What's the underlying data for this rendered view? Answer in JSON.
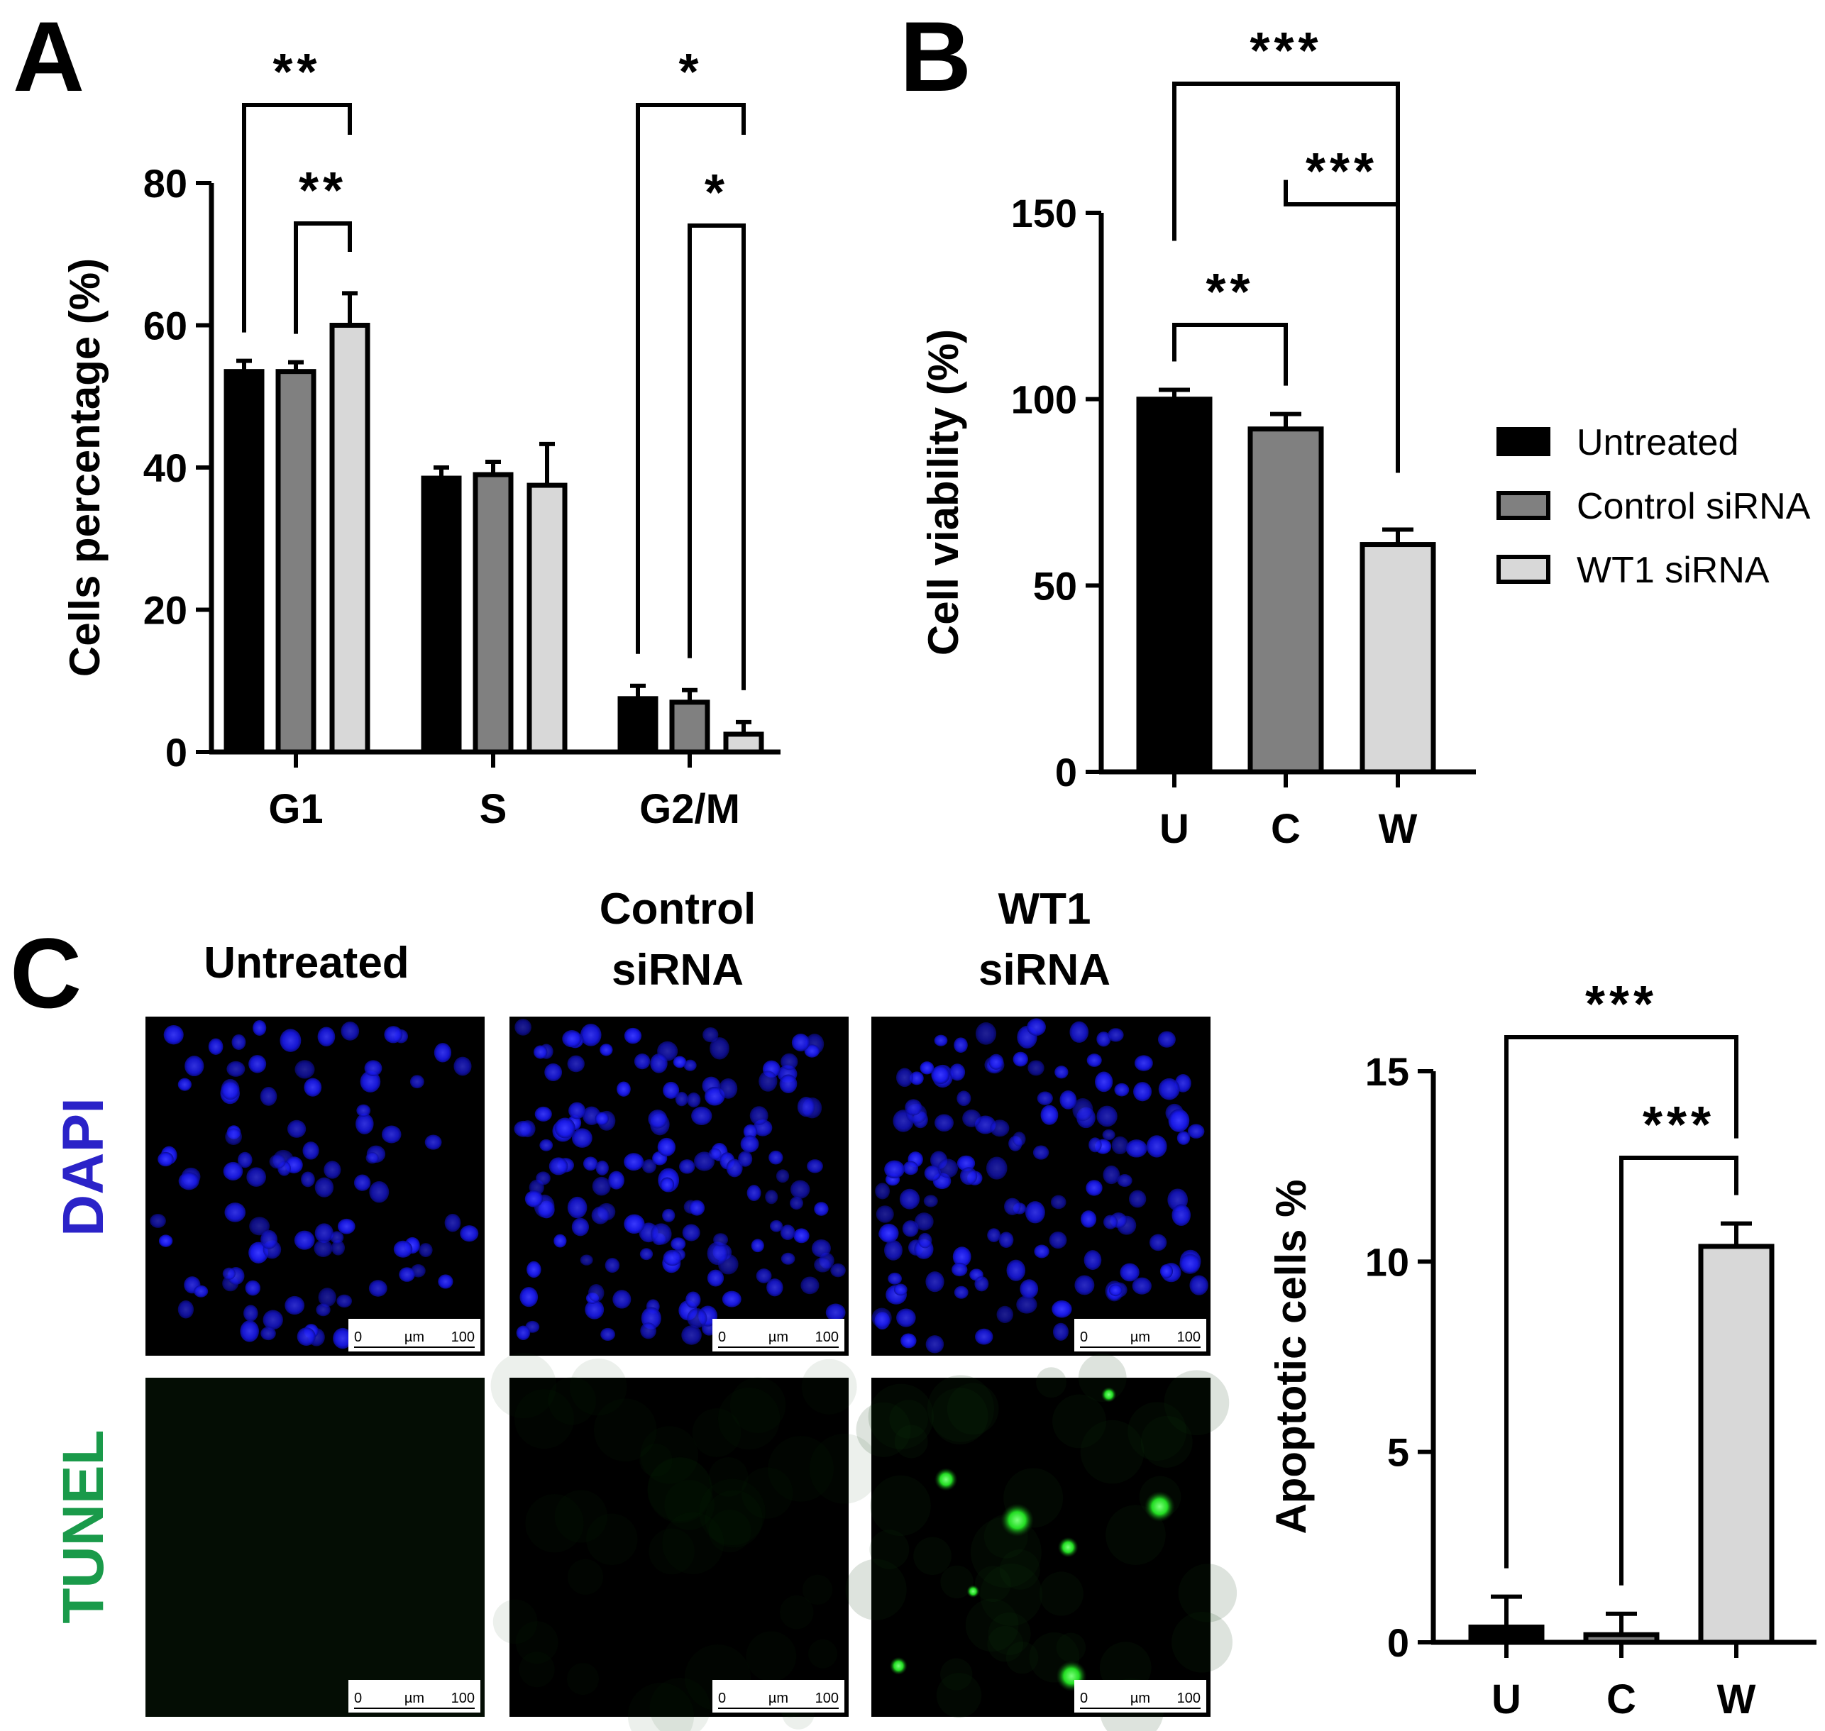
{
  "colors": {
    "untreated": "#000000",
    "control": "#808080",
    "wt1": "#d8d8d8",
    "dapi": "#2b23c8",
    "tunel": "#1a9a4a",
    "nuclei": "#1d1dff"
  },
  "legend": {
    "items": [
      {
        "label": "Untreated",
        "color": "#000000"
      },
      {
        "label": "Control siRNA",
        "color": "#808080"
      },
      {
        "label": "WT1 siRNA",
        "color": "#d8d8d8"
      }
    ]
  },
  "chart_data": [
    {
      "panel": "A",
      "type": "bar",
      "ylabel": "Cells percentage (%)",
      "xlabel": "",
      "ylim": [
        0,
        80
      ],
      "yticks": [
        "0",
        "20",
        "40",
        "60",
        "80"
      ],
      "categories": [
        "G1",
        "S",
        "G2/M"
      ],
      "series": [
        {
          "name": "Untreated",
          "values": [
            53.5,
            38.5,
            7.5
          ],
          "errors": [
            1.5,
            1.5,
            1.8
          ]
        },
        {
          "name": "Control siRNA",
          "values": [
            53.5,
            39,
            7
          ],
          "errors": [
            1.3,
            1.8,
            1.7
          ]
        },
        {
          "name": "WT1 siRNA",
          "values": [
            60,
            37.5,
            2.5
          ],
          "errors": [
            4.5,
            5.8,
            1.7
          ]
        }
      ],
      "significance": [
        {
          "label": "**",
          "group": 0,
          "from": 0,
          "to": 2
        },
        {
          "label": "**",
          "group": 0,
          "from": 1,
          "to": 2
        },
        {
          "label": "*",
          "group": 2,
          "from": 0,
          "to": 2
        },
        {
          "label": "*",
          "group": 2,
          "from": 1,
          "to": 2
        }
      ]
    },
    {
      "panel": "B",
      "type": "bar",
      "ylabel": "Cell viability (%)",
      "xlabel": "",
      "ylim": [
        0,
        150
      ],
      "yticks": [
        "0",
        "50",
        "100",
        "150"
      ],
      "categories": [
        "U",
        "C",
        "W"
      ],
      "values": [
        100,
        92,
        61
      ],
      "errors": [
        2.5,
        4,
        4
      ],
      "significance": [
        {
          "label": "***",
          "from": 0,
          "to": 2
        },
        {
          "label": "***",
          "from": 1,
          "to": 2
        },
        {
          "label": "**",
          "from": 0,
          "to": 1
        }
      ]
    },
    {
      "panel": "C",
      "type": "bar",
      "ylabel": "Apoptotic cells  %",
      "xlabel": "",
      "ylim": [
        0,
        15
      ],
      "yticks": [
        "0",
        "5",
        "10",
        "15"
      ],
      "categories": [
        "U",
        "C",
        "W"
      ],
      "values": [
        0.4,
        0.2,
        10.4
      ],
      "errors": [
        0.8,
        0.55,
        0.6
      ],
      "significance": [
        {
          "label": "***",
          "from": 0,
          "to": 2
        },
        {
          "label": "***",
          "from": 1,
          "to": 2
        }
      ]
    }
  ],
  "panels": {
    "a_letter": "A",
    "b_letter": "B",
    "c_letter": "C"
  },
  "micrographs": {
    "columns": [
      "Untreated",
      "Control",
      "siRNA",
      "WT1",
      "siRNA"
    ],
    "col_untreated": "Untreated",
    "col_control_l1": "Control",
    "col_control_l2": "siRNA",
    "col_wt1_l1": "WT1",
    "col_wt1_l2": "siRNA",
    "row_dapi": "DAPI",
    "row_tunel": "TUNEL",
    "scalebar": {
      "min": "0",
      "unit": "µm",
      "max": "100"
    }
  }
}
